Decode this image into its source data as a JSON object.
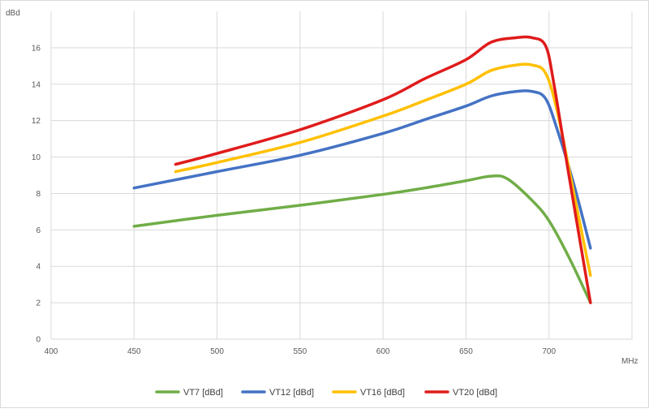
{
  "chart_data": {
    "type": "line",
    "title": "",
    "xlabel": "MHz",
    "ylabel": "dBd",
    "xlim": [
      400,
      750
    ],
    "ylim": [
      0,
      18
    ],
    "xticks": [
      400,
      450,
      500,
      550,
      600,
      650,
      700
    ],
    "yticks": [
      0,
      2,
      4,
      6,
      8,
      10,
      12,
      14,
      16
    ],
    "grid": true,
    "legend_position": "bottom",
    "series": [
      {
        "name": "VT7 [dBd]",
        "color": "#70ad47",
        "points": [
          [
            450,
            6.2
          ],
          [
            500,
            6.8
          ],
          [
            550,
            7.35
          ],
          [
            600,
            7.95
          ],
          [
            625,
            8.3
          ],
          [
            650,
            8.7
          ],
          [
            665,
            8.95
          ],
          [
            675,
            8.8
          ],
          [
            690,
            7.6
          ],
          [
            700,
            6.5
          ],
          [
            712,
            4.5
          ],
          [
            725,
            2.0
          ]
        ]
      },
      {
        "name": "VT12 [dBd]",
        "color": "#4472c4",
        "points": [
          [
            450,
            8.3
          ],
          [
            500,
            9.2
          ],
          [
            550,
            10.1
          ],
          [
            600,
            11.3
          ],
          [
            625,
            12.05
          ],
          [
            650,
            12.8
          ],
          [
            665,
            13.35
          ],
          [
            680,
            13.6
          ],
          [
            690,
            13.6
          ],
          [
            698,
            13.2
          ],
          [
            705,
            11.5
          ],
          [
            715,
            8.5
          ],
          [
            725,
            5.0
          ]
        ]
      },
      {
        "name": "VT16 [dBd]",
        "color": "#ffc000",
        "points": [
          [
            475,
            9.2
          ],
          [
            500,
            9.7
          ],
          [
            550,
            10.8
          ],
          [
            600,
            12.25
          ],
          [
            625,
            13.1
          ],
          [
            650,
            14.0
          ],
          [
            665,
            14.75
          ],
          [
            680,
            15.05
          ],
          [
            690,
            15.05
          ],
          [
            698,
            14.6
          ],
          [
            705,
            12.5
          ],
          [
            715,
            8.0
          ],
          [
            725,
            3.5
          ]
        ]
      },
      {
        "name": "VT20 [dBd]",
        "color": "#e01b1b",
        "points": [
          [
            475,
            9.6
          ],
          [
            500,
            10.2
          ],
          [
            550,
            11.5
          ],
          [
            600,
            13.15
          ],
          [
            625,
            14.3
          ],
          [
            650,
            15.35
          ],
          [
            665,
            16.3
          ],
          [
            680,
            16.55
          ],
          [
            690,
            16.55
          ],
          [
            698,
            16.1
          ],
          [
            703,
            14.0
          ],
          [
            712,
            9.0
          ],
          [
            725,
            2.0
          ]
        ]
      }
    ]
  }
}
